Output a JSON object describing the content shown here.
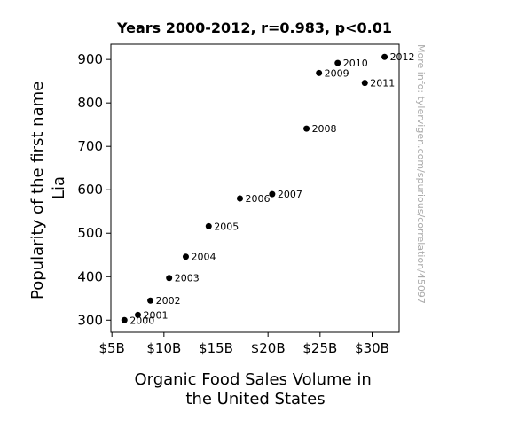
{
  "chart_data": {
    "type": "scatter",
    "title": "Years 2000-2012, r=0.983, p<0.01",
    "xlabel_lines": [
      "Organic Food Sales Volume in",
      "the United States"
    ],
    "ylabel_lines": [
      "Popularity of the first name",
      "Lia"
    ],
    "xlim": [
      4.9,
      32.6
    ],
    "ylim": [
      272,
      935
    ],
    "x_ticks": [
      5,
      10,
      15,
      20,
      25,
      30
    ],
    "x_tick_labels": [
      "$5B",
      "$10B",
      "$15B",
      "$20B",
      "$25B",
      "$30B"
    ],
    "y_ticks": [
      300,
      400,
      500,
      600,
      700,
      800,
      900
    ],
    "y_tick_labels": [
      "300",
      "400",
      "500",
      "600",
      "700",
      "800",
      "900"
    ],
    "points": [
      {
        "x": 6.2,
        "y": 300,
        "label": "2000"
      },
      {
        "x": 7.5,
        "y": 312,
        "label": "2001"
      },
      {
        "x": 8.7,
        "y": 345,
        "label": "2002"
      },
      {
        "x": 10.5,
        "y": 397,
        "label": "2003"
      },
      {
        "x": 12.1,
        "y": 446,
        "label": "2004"
      },
      {
        "x": 14.3,
        "y": 516,
        "label": "2005"
      },
      {
        "x": 17.3,
        "y": 580,
        "label": "2006"
      },
      {
        "x": 20.4,
        "y": 590,
        "label": "2007"
      },
      {
        "x": 23.7,
        "y": 741,
        "label": "2008"
      },
      {
        "x": 24.9,
        "y": 869,
        "label": "2009"
      },
      {
        "x": 26.7,
        "y": 892,
        "label": "2010"
      },
      {
        "x": 29.3,
        "y": 846,
        "label": "2011"
      },
      {
        "x": 31.2,
        "y": 906,
        "label": "2012"
      }
    ],
    "grid": false,
    "marker_color": "#000000"
  },
  "watermark": "More info: tylervigen.com/spurious/correlation/45097"
}
